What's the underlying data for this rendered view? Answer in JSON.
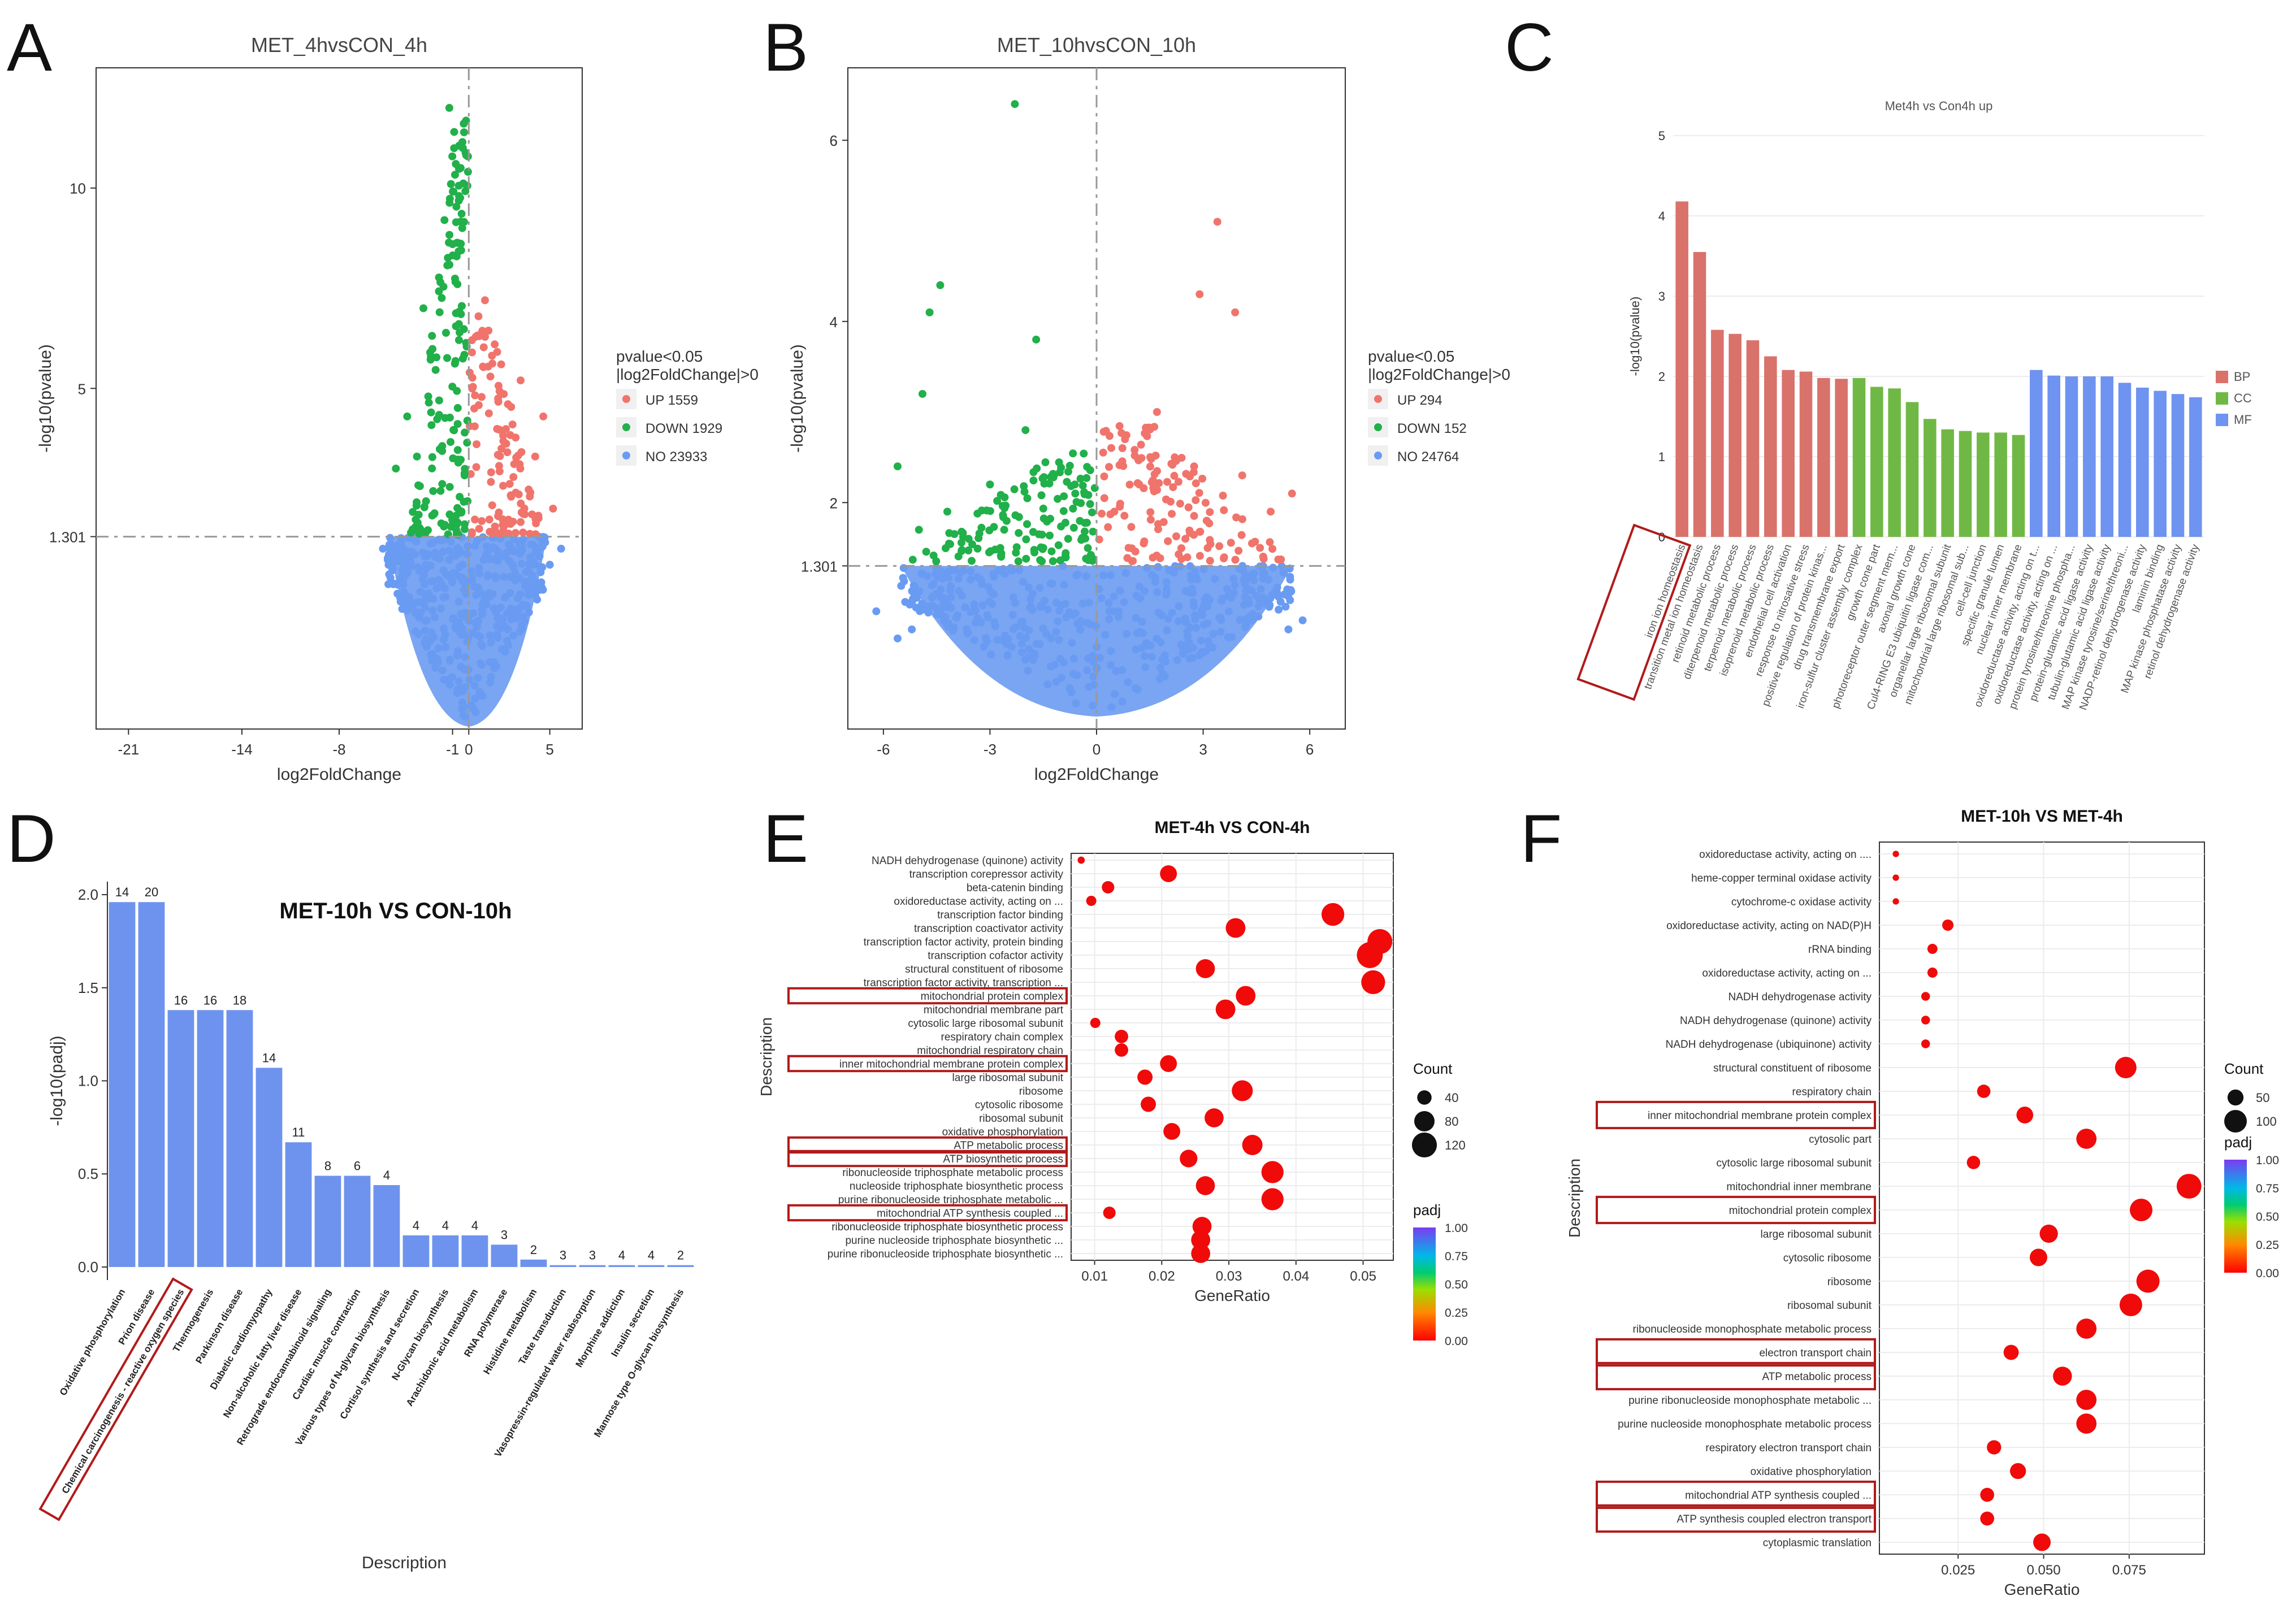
{
  "colors": {
    "up": "#F0746C",
    "down": "#21B04A",
    "no": "#6A9BF2",
    "bp": "#D9726B",
    "cc": "#70B846",
    "mf": "#6E93F0",
    "bar": "#6E93EE",
    "dot": "#F00A0A",
    "highlight": "#B11A1A"
  },
  "panels": {
    "A": "A",
    "B": "B",
    "C": "C",
    "D": "D",
    "E": "E",
    "F": "F"
  },
  "chart_data": [
    {
      "id": "A",
      "type": "scatter",
      "title": "MET_4hvsCON_4h",
      "xlabel": "log2FoldChange",
      "ylabel": "-log10(pvalue)",
      "xlim": [
        -23,
        7
      ],
      "ylim": [
        -3.5,
        13
      ],
      "xticks": [
        "-21",
        "-14",
        "-8",
        "-1",
        "0",
        "5"
      ],
      "xtick_values": [
        -21,
        -14,
        -8,
        -1,
        0,
        5
      ],
      "yticks": [
        "1.301",
        "5",
        "10"
      ],
      "ytick_values": [
        1.301,
        5,
        10
      ],
      "threshold_y": 1.301,
      "legend_title": "pvalue<0.05\n|log2FoldChange|>0",
      "legend": [
        {
          "key": "up",
          "label": "UP 1559"
        },
        {
          "key": "down",
          "label": "DOWN 1929"
        },
        {
          "key": "no",
          "label": "NO 23933"
        }
      ],
      "points": [
        [
          -1.2,
          12.0,
          "down"
        ],
        [
          -0.9,
          11.4,
          "down"
        ],
        [
          -0.8,
          10.6,
          "down"
        ],
        [
          -0.5,
          10.5,
          "down"
        ],
        [
          -1.1,
          10.1,
          "down"
        ],
        [
          -0.6,
          9.8,
          "down"
        ],
        [
          -1.5,
          9.2,
          "down"
        ],
        [
          -0.4,
          9.0,
          "down"
        ],
        [
          -1.0,
          8.6,
          "down"
        ],
        [
          -2.8,
          7.0,
          "down"
        ],
        [
          -1.8,
          6.9,
          "down"
        ],
        [
          -0.7,
          7.6,
          "down"
        ],
        [
          -3.8,
          4.3,
          "down"
        ],
        [
          -3.2,
          3.3,
          "down"
        ],
        [
          -4.5,
          3.0,
          "down"
        ],
        [
          -2.5,
          4.8,
          "down"
        ],
        [
          1.0,
          7.2,
          "up"
        ],
        [
          0.6,
          6.8,
          "up"
        ],
        [
          2.0,
          5.6,
          "up"
        ],
        [
          3.2,
          5.2,
          "up"
        ],
        [
          4.6,
          4.3,
          "up"
        ],
        [
          4.1,
          3.3,
          "up"
        ],
        [
          1.6,
          6.1,
          "up"
        ],
        [
          3.8,
          2.4,
          "up"
        ],
        [
          5.2,
          2.0,
          "up"
        ],
        [
          2.7,
          4.1,
          "up"
        ],
        [
          -5.3,
          1.0,
          "no"
        ],
        [
          -4.9,
          1.1,
          "no"
        ],
        [
          -4.4,
          0.9,
          "no"
        ],
        [
          5.7,
          1.0,
          "no"
        ],
        [
          5.0,
          0.6,
          "no"
        ]
      ]
    },
    {
      "id": "B",
      "type": "scatter",
      "title": "MET_10hvsCON_10h",
      "xlabel": "log2FoldChange",
      "ylabel": "-log10(pvalue)",
      "xlim": [
        -7,
        7
      ],
      "ylim": [
        -0.5,
        6.8
      ],
      "xticks": [
        "-6",
        "-3",
        "0",
        "3",
        "6"
      ],
      "xtick_values": [
        -6,
        -3,
        0,
        3,
        6
      ],
      "yticks": [
        "1.301",
        "2",
        "4",
        "6"
      ],
      "ytick_values": [
        1.301,
        2,
        4,
        6
      ],
      "threshold_y": 1.301,
      "legend_title": "pvalue<0.05\n|log2FoldChange|>0",
      "legend": [
        {
          "key": "up",
          "label": "UP 294"
        },
        {
          "key": "down",
          "label": "DOWN 152"
        },
        {
          "key": "no",
          "label": "NO 24764"
        }
      ],
      "points": [
        [
          -2.3,
          6.4,
          "down"
        ],
        [
          -4.4,
          4.4,
          "down"
        ],
        [
          -4.7,
          4.1,
          "down"
        ],
        [
          -1.7,
          3.8,
          "down"
        ],
        [
          -4.9,
          3.2,
          "down"
        ],
        [
          -5.6,
          2.4,
          "down"
        ],
        [
          -2.0,
          2.8,
          "down"
        ],
        [
          -3.0,
          2.2,
          "down"
        ],
        [
          -4.2,
          1.9,
          "down"
        ],
        [
          -1.2,
          2.3,
          "down"
        ],
        [
          -0.6,
          2.1,
          "down"
        ],
        [
          -5.0,
          1.7,
          "down"
        ],
        [
          -3.6,
          1.6,
          "down"
        ],
        [
          -2.6,
          1.7,
          "down"
        ],
        [
          -1.5,
          1.5,
          "down"
        ],
        [
          -0.8,
          1.6,
          "down"
        ],
        [
          3.4,
          5.1,
          "up"
        ],
        [
          3.9,
          4.1,
          "up"
        ],
        [
          2.9,
          4.3,
          "up"
        ],
        [
          1.7,
          3.0,
          "up"
        ],
        [
          0.8,
          2.7,
          "up"
        ],
        [
          2.2,
          2.5,
          "up"
        ],
        [
          4.1,
          2.3,
          "up"
        ],
        [
          5.5,
          2.1,
          "up"
        ],
        [
          4.9,
          1.9,
          "up"
        ],
        [
          1.2,
          2.2,
          "up"
        ],
        [
          3.1,
          1.8,
          "up"
        ],
        [
          0.5,
          1.9,
          "up"
        ],
        [
          2.5,
          1.6,
          "up"
        ],
        [
          4.6,
          1.5,
          "up"
        ],
        [
          0.9,
          1.5,
          "up"
        ],
        [
          -6.2,
          0.8,
          "no"
        ],
        [
          -5.6,
          0.5,
          "no"
        ],
        [
          -5.2,
          0.6,
          "no"
        ],
        [
          5.4,
          0.6,
          "no"
        ],
        [
          5.8,
          0.7,
          "no"
        ]
      ]
    },
    {
      "id": "C",
      "type": "bar",
      "title": "Met4h vs Con4h up",
      "xlabel": "",
      "ylabel": "-log10(pvalue)",
      "ylim": [
        0,
        5
      ],
      "yticks": [
        "0",
        "1",
        "2",
        "3",
        "4",
        "5"
      ],
      "ytick_values": [
        0,
        1,
        2,
        3,
        4,
        5
      ],
      "legend": [
        {
          "key": "bp",
          "label": "BP"
        },
        {
          "key": "cc",
          "label": "CC"
        },
        {
          "key": "mf",
          "label": "MF"
        }
      ],
      "highlighted": [
        0
      ],
      "categories": [
        "iron ion homeostasis",
        "transition metal ion homeostasis",
        "retinoid metabolic process",
        "diterpenoid metabolic process",
        "terpenoid metabolic process",
        "isoprenoid metabolic process",
        "endothelial cell activation",
        "response to nitrosative stress",
        "positive regulation of protein kinas...",
        "drug transmembrane export",
        "iron-sulfur cluster assembly complex",
        "growth cone part",
        "photoreceptor outer segment mem...",
        "axonal growth cone",
        "Cul4-RING E3 ubiquitin ligase com...",
        "organellar large ribosomal subunit",
        "mitochondrial large ribosomal sub...",
        "cell-cell junction",
        "specific granule lumen",
        "nuclear inner membrane",
        "oxidoreductase activity, acting on t...",
        "oxidoreductase activity, acting on ...",
        "protein tyrosine/threonine phospha...",
        "protein-glutamic acid ligase activity",
        "tubulin-glutamic acid ligase activity",
        "MAP kinase tyrosine/serine/threoni...",
        "NADP-retinol dehydrogenase activity",
        "laminin binding",
        "MAP kinase phosphatase activity",
        "retinol dehydrogenase activity"
      ],
      "groups": [
        "bp",
        "bp",
        "bp",
        "bp",
        "bp",
        "bp",
        "bp",
        "bp",
        "bp",
        "bp",
        "cc",
        "cc",
        "cc",
        "cc",
        "cc",
        "cc",
        "cc",
        "cc",
        "cc",
        "cc",
        "mf",
        "mf",
        "mf",
        "mf",
        "mf",
        "mf",
        "mf",
        "mf",
        "mf",
        "mf"
      ],
      "values": [
        4.18,
        3.55,
        2.58,
        2.53,
        2.45,
        2.25,
        2.08,
        2.06,
        1.98,
        1.97,
        1.98,
        1.87,
        1.85,
        1.68,
        1.47,
        1.34,
        1.32,
        1.3,
        1.3,
        1.27,
        2.08,
        2.01,
        2.0,
        2.0,
        2.0,
        1.92,
        1.86,
        1.82,
        1.78,
        1.74
      ]
    },
    {
      "id": "D",
      "type": "bar",
      "title": "MET-10h VS CON-10h",
      "xlabel": "Description",
      "ylabel": "-log10(padj)",
      "ylim": [
        -0.07,
        2.07
      ],
      "yticks": [
        "0.0",
        "0.5",
        "1.0",
        "1.5",
        "2.0"
      ],
      "ytick_values": [
        0,
        0.5,
        1.0,
        1.5,
        2.0
      ],
      "highlighted": [
        2
      ],
      "categories": [
        "Oxidative phosphorylation",
        "Prion disease",
        "Chemical carcinogenesis - reactive oxygen species",
        "Thermogenesis",
        "Parkinson disease",
        "Diabetic cardiomyopathy",
        "Non-alcoholic fatty liver disease",
        "Retrograde endocannabinoid signaling",
        "Cardiac muscle contraction",
        "Various types of N-glycan biosynthesis",
        "Cortisol synthesis and secretion",
        "N-Glycan biosynthesis",
        "Arachidonic acid metabolism",
        "RNA polymerase",
        "Histidine metabolism",
        "Taste transduction",
        "Vasopressin-regulated water reabsorption",
        "Morphine addiction",
        "Insulin secretion",
        "Mannose type O-glycan biosynthesis"
      ],
      "values": [
        1.96,
        1.96,
        1.38,
        1.38,
        1.38,
        1.07,
        0.67,
        0.49,
        0.49,
        0.44,
        0.17,
        0.17,
        0.17,
        0.12,
        0.04,
        0.01,
        0.01,
        0.01,
        0.01,
        0.01
      ],
      "labels": [
        "14",
        "20",
        "16",
        "16",
        "18",
        "14",
        "11",
        "8",
        "6",
        "4",
        "4",
        "4",
        "4",
        "3",
        "2",
        "3",
        "3",
        "4",
        "4",
        "2"
      ]
    },
    {
      "id": "E",
      "type": "scatter",
      "title": "MET-4h VS CON-4h",
      "xlabel": "GeneRatio",
      "ylabel": "Description",
      "xlim": [
        0.0065,
        0.0545
      ],
      "xticks": [
        "0.01",
        "0.02",
        "0.03",
        "0.04",
        "0.05"
      ],
      "xtick_values": [
        0.01,
        0.02,
        0.03,
        0.04,
        0.05
      ],
      "size_legend_title": "Count",
      "size_legend": [
        "40",
        "80",
        "120"
      ],
      "size_legend_values": [
        40,
        80,
        120
      ],
      "color_legend_title": "padj",
      "color_legend_ticks": [
        "1.00",
        "0.75",
        "0.50",
        "0.25",
        "0.00"
      ],
      "categories": [
        "NADH dehydrogenase (quinone) activity",
        "transcription corepressor activity",
        "beta-catenin binding",
        "oxidoreductase activity, acting on ...",
        "transcription factor binding",
        "transcription coactivator activity",
        "transcription factor activity, protein binding",
        "transcription cofactor activity",
        "structural constituent of ribosome",
        "transcription factor activity, transcription ...",
        "mitochondrial protein complex",
        "mitochondrial membrane part",
        "cytosolic large ribosomal subunit",
        "respiratory chain complex",
        "mitochondrial respiratory chain",
        "inner mitochondrial membrane protein complex",
        "large ribosomal subunit",
        "ribosome",
        "cytosolic ribosome",
        "ribosomal subunit",
        "oxidative phosphorylation",
        "ATP metabolic process",
        "ATP biosynthetic process",
        "ribonucleoside triphosphate metabolic process",
        "nucleoside triphosphate biosynthetic process",
        "purine ribonucleoside triphosphate metabolic ...",
        "mitochondrial ATP synthesis coupled ...",
        "ribonucleoside triphosphate biosynthetic process",
        "purine nucleoside triphosphate biosynthetic ...",
        "purine ribonucleoside triphosphate biosynthetic ..."
      ],
      "x": [
        0.008,
        0.021,
        0.012,
        0.0095,
        0.0455,
        0.031,
        0.0525,
        0.051,
        0.0265,
        0.0515,
        0.0325,
        0.0295,
        0.0101,
        0.014,
        0.014,
        0.021,
        0.0175,
        0.032,
        0.018,
        0.0278,
        0.0215,
        0.0335,
        0.024,
        0.0365,
        0.0265,
        0.0365,
        0.0122,
        0.026,
        0.0258,
        0.0258
      ],
      "count": [
        10,
        55,
        30,
        20,
        100,
        75,
        120,
        130,
        70,
        110,
        75,
        75,
        20,
        35,
        35,
        55,
        45,
        85,
        45,
        70,
        55,
        80,
        60,
        95,
        70,
        95,
        30,
        70,
        70,
        70
      ],
      "highlighted": [
        10,
        15,
        21,
        22,
        26
      ]
    },
    {
      "id": "F",
      "type": "scatter",
      "title": "MET-10h VS MET-4h",
      "xlabel": "GeneRatio",
      "ylabel": "Description",
      "xlim": [
        0.002,
        0.097
      ],
      "xticks": [
        "0.025",
        "0.050",
        "0.075"
      ],
      "xtick_values": [
        0.025,
        0.05,
        0.075
      ],
      "size_legend_title": "Count",
      "size_legend": [
        "50",
        "100"
      ],
      "size_legend_values": [
        50,
        100
      ],
      "color_legend_title": "padj",
      "color_legend_ticks": [
        "1.00",
        "0.75",
        "0.50",
        "0.25",
        "0.00"
      ],
      "categories": [
        "oxidoreductase activity, acting on ....",
        "heme-copper terminal oxidase activity",
        "cytochrome-c oxidase activity",
        "oxidoreductase activity, acting on NAD(P)H",
        "rRNA binding",
        "oxidoreductase activity, acting on ...",
        "NADH dehydrogenase activity",
        "NADH dehydrogenase (quinone) activity",
        "NADH dehydrogenase (ubiquinone) activity",
        "structural constituent of ribosome",
        "respiratory chain",
        "inner mitochondrial membrane protein complex",
        "cytosolic part",
        "cytosolic large ribosomal subunit",
        "mitochondrial inner membrane",
        "mitochondrial protein complex",
        "large ribosomal subunit",
        "cytosolic ribosome",
        "ribosome",
        "ribosomal subunit",
        "ribonucleoside monophosphate metabolic process",
        "electron transport chain",
        "ATP metabolic process",
        "purine ribonucleoside monophosphate metabolic ...",
        "purine nucleoside monophosphate metabolic process",
        "respiratory electron transport chain",
        "oxidative phosphorylation",
        "mitochondrial ATP synthesis coupled ...",
        "ATP synthesis coupled electron transport",
        "cytoplasmic translation"
      ],
      "x": [
        0.0068,
        0.0068,
        0.0068,
        0.022,
        0.0175,
        0.0175,
        0.0155,
        0.0155,
        0.0155,
        0.074,
        0.0325,
        0.0445,
        0.0625,
        0.0295,
        0.0925,
        0.0785,
        0.0515,
        0.0485,
        0.0805,
        0.0755,
        0.0625,
        0.0405,
        0.0555,
        0.0625,
        0.0625,
        0.0355,
        0.0425,
        0.0335,
        0.0335,
        0.0495
      ],
      "count": [
        8,
        8,
        8,
        25,
        20,
        20,
        15,
        15,
        15,
        90,
        35,
        55,
        80,
        35,
        120,
        100,
        65,
        60,
        105,
        100,
        80,
        45,
        70,
        80,
        80,
        40,
        50,
        38,
        38,
        60
      ],
      "highlighted": [
        11,
        15,
        21,
        22,
        27,
        28
      ]
    }
  ]
}
